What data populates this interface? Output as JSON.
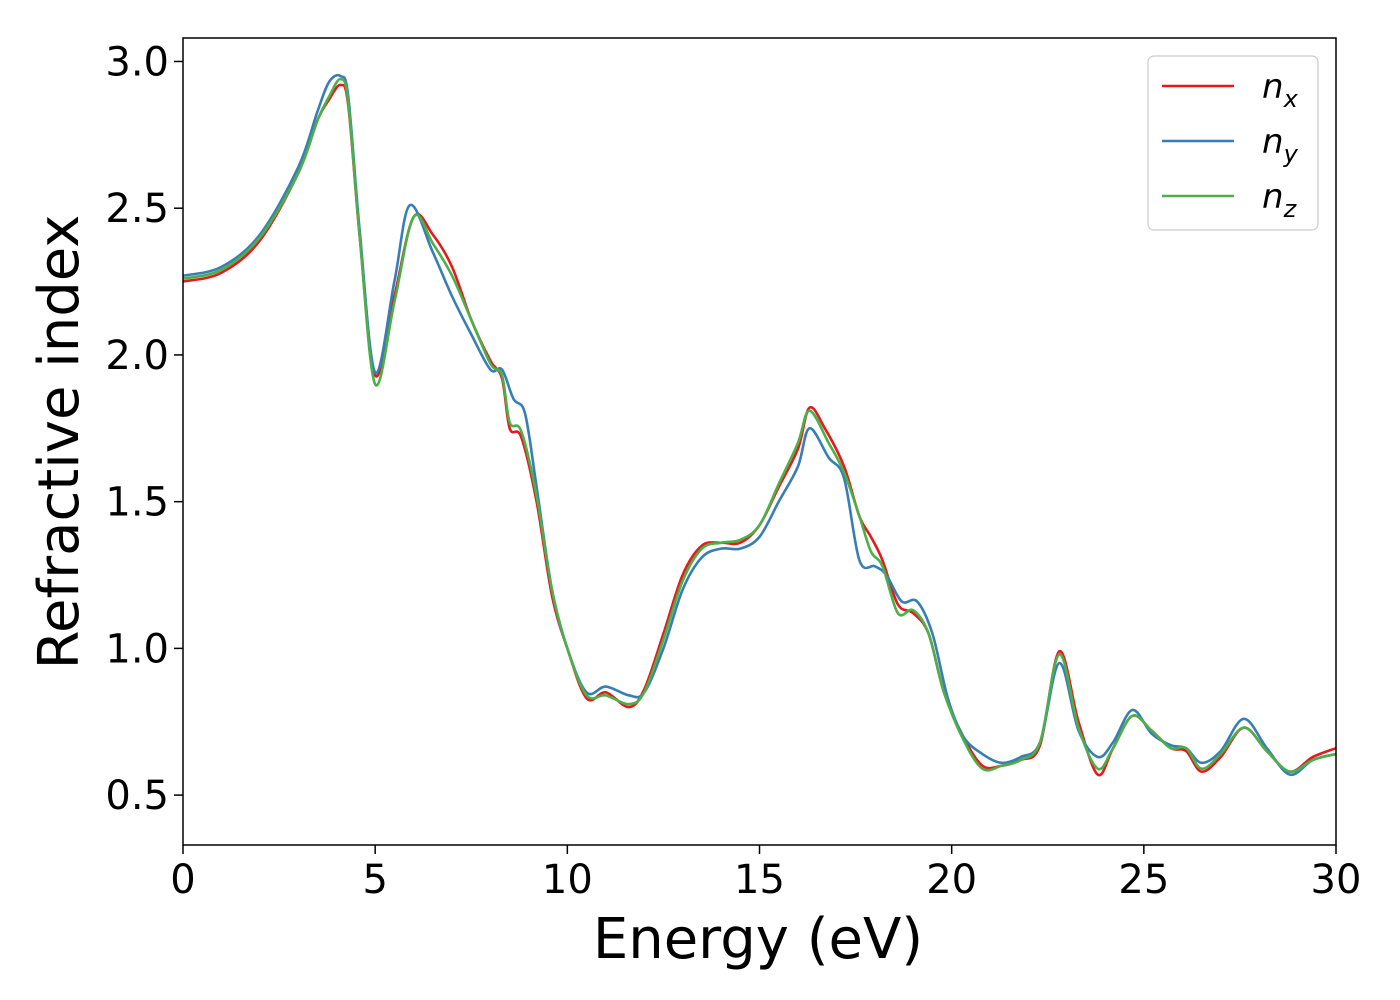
{
  "chart_data": {
    "type": "line",
    "title": "",
    "xlabel": "Energy (eV)",
    "ylabel": "Refractive index",
    "xlim": [
      0,
      30
    ],
    "ylim": [
      0.33,
      3.08
    ],
    "xticks": [
      0,
      5,
      10,
      15,
      20,
      25,
      30
    ],
    "yticks": [
      0.5,
      1.0,
      1.5,
      2.0,
      2.5,
      3.0
    ],
    "xtick_labels": [
      "0",
      "5",
      "10",
      "15",
      "20",
      "25",
      "30"
    ],
    "ytick_labels": [
      "0.5",
      "1.0",
      "1.5",
      "2.0",
      "2.5",
      "3.0"
    ],
    "grid": false,
    "legend_position": "top-right",
    "series": [
      {
        "name": "n",
        "subscript": "x",
        "color": "#e41a1c",
        "points": [
          [
            0,
            2.25
          ],
          [
            1,
            2.28
          ],
          [
            2,
            2.39
          ],
          [
            3,
            2.62
          ],
          [
            3.5,
            2.8
          ],
          [
            3.8,
            2.87
          ],
          [
            4.1,
            2.92
          ],
          [
            4.3,
            2.85
          ],
          [
            4.6,
            2.4
          ],
          [
            5,
            1.93
          ],
          [
            5.5,
            2.2
          ],
          [
            6,
            2.47
          ],
          [
            6.5,
            2.41
          ],
          [
            7,
            2.3
          ],
          [
            7.5,
            2.12
          ],
          [
            8,
            1.98
          ],
          [
            8.3,
            1.92
          ],
          [
            8.5,
            1.75
          ],
          [
            8.8,
            1.72
          ],
          [
            9.2,
            1.5
          ],
          [
            9.6,
            1.18
          ],
          [
            10,
            1.0
          ],
          [
            10.5,
            0.83
          ],
          [
            11,
            0.85
          ],
          [
            11.6,
            0.8
          ],
          [
            12,
            0.86
          ],
          [
            12.5,
            1.05
          ],
          [
            13,
            1.25
          ],
          [
            13.5,
            1.35
          ],
          [
            14,
            1.36
          ],
          [
            14.5,
            1.36
          ],
          [
            15,
            1.42
          ],
          [
            15.5,
            1.55
          ],
          [
            16,
            1.68
          ],
          [
            16.3,
            1.82
          ],
          [
            16.7,
            1.75
          ],
          [
            17.2,
            1.62
          ],
          [
            17.6,
            1.45
          ],
          [
            17.9,
            1.38
          ],
          [
            18.2,
            1.3
          ],
          [
            18.6,
            1.15
          ],
          [
            19,
            1.12
          ],
          [
            19.4,
            1.05
          ],
          [
            19.8,
            0.85
          ],
          [
            20.3,
            0.7
          ],
          [
            20.8,
            0.6
          ],
          [
            21.3,
            0.6
          ],
          [
            21.8,
            0.62
          ],
          [
            22.3,
            0.67
          ],
          [
            22.8,
            0.99
          ],
          [
            23.3,
            0.75
          ],
          [
            23.8,
            0.57
          ],
          [
            24.2,
            0.66
          ],
          [
            24.7,
            0.77
          ],
          [
            25.2,
            0.72
          ],
          [
            25.7,
            0.66
          ],
          [
            26.1,
            0.65
          ],
          [
            26.5,
            0.58
          ],
          [
            27,
            0.63
          ],
          [
            27.6,
            0.73
          ],
          [
            28.2,
            0.65
          ],
          [
            28.8,
            0.58
          ],
          [
            29.4,
            0.63
          ],
          [
            30,
            0.66
          ]
        ]
      },
      {
        "name": "n",
        "subscript": "y",
        "color": "#377eb8",
        "points": [
          [
            0,
            2.27
          ],
          [
            1,
            2.3
          ],
          [
            2,
            2.41
          ],
          [
            3,
            2.64
          ],
          [
            3.5,
            2.83
          ],
          [
            3.8,
            2.93
          ],
          [
            4.1,
            2.95
          ],
          [
            4.3,
            2.88
          ],
          [
            4.6,
            2.42
          ],
          [
            5,
            1.94
          ],
          [
            5.5,
            2.25
          ],
          [
            5.9,
            2.51
          ],
          [
            6.5,
            2.35
          ],
          [
            7,
            2.2
          ],
          [
            7.5,
            2.07
          ],
          [
            8,
            1.95
          ],
          [
            8.3,
            1.95
          ],
          [
            8.6,
            1.85
          ],
          [
            8.9,
            1.8
          ],
          [
            9.2,
            1.55
          ],
          [
            9.6,
            1.2
          ],
          [
            10,
            1.0
          ],
          [
            10.5,
            0.85
          ],
          [
            11,
            0.87
          ],
          [
            11.6,
            0.84
          ],
          [
            12,
            0.85
          ],
          [
            12.5,
            1.0
          ],
          [
            13,
            1.2
          ],
          [
            13.5,
            1.31
          ],
          [
            14,
            1.34
          ],
          [
            14.5,
            1.34
          ],
          [
            15,
            1.38
          ],
          [
            15.5,
            1.5
          ],
          [
            16,
            1.62
          ],
          [
            16.3,
            1.75
          ],
          [
            16.8,
            1.65
          ],
          [
            17.2,
            1.58
          ],
          [
            17.6,
            1.3
          ],
          [
            18,
            1.28
          ],
          [
            18.3,
            1.25
          ],
          [
            18.7,
            1.16
          ],
          [
            19.1,
            1.16
          ],
          [
            19.5,
            1.05
          ],
          [
            19.9,
            0.83
          ],
          [
            20.3,
            0.7
          ],
          [
            20.8,
            0.64
          ],
          [
            21.3,
            0.61
          ],
          [
            21.8,
            0.63
          ],
          [
            22.3,
            0.68
          ],
          [
            22.8,
            0.95
          ],
          [
            23.3,
            0.72
          ],
          [
            23.8,
            0.63
          ],
          [
            24.2,
            0.68
          ],
          [
            24.7,
            0.79
          ],
          [
            25.2,
            0.71
          ],
          [
            25.7,
            0.67
          ],
          [
            26.1,
            0.66
          ],
          [
            26.5,
            0.61
          ],
          [
            27,
            0.65
          ],
          [
            27.6,
            0.76
          ],
          [
            28.2,
            0.66
          ],
          [
            28.8,
            0.57
          ],
          [
            29.4,
            0.62
          ],
          [
            30,
            0.64
          ]
        ]
      },
      {
        "name": "n",
        "subscript": "z",
        "color": "#4daf4a",
        "points": [
          [
            0,
            2.26
          ],
          [
            1,
            2.29
          ],
          [
            2,
            2.4
          ],
          [
            3,
            2.62
          ],
          [
            3.5,
            2.8
          ],
          [
            3.8,
            2.88
          ],
          [
            4.1,
            2.94
          ],
          [
            4.3,
            2.86
          ],
          [
            4.6,
            2.4
          ],
          [
            5,
            1.9
          ],
          [
            5.5,
            2.18
          ],
          [
            6,
            2.47
          ],
          [
            6.5,
            2.38
          ],
          [
            7,
            2.27
          ],
          [
            7.5,
            2.12
          ],
          [
            8,
            1.97
          ],
          [
            8.3,
            1.93
          ],
          [
            8.5,
            1.77
          ],
          [
            8.8,
            1.74
          ],
          [
            9.2,
            1.52
          ],
          [
            9.6,
            1.2
          ],
          [
            10,
            1.0
          ],
          [
            10.5,
            0.84
          ],
          [
            11,
            0.84
          ],
          [
            11.6,
            0.81
          ],
          [
            12,
            0.85
          ],
          [
            12.5,
            1.03
          ],
          [
            13,
            1.23
          ],
          [
            13.5,
            1.34
          ],
          [
            14,
            1.36
          ],
          [
            14.5,
            1.37
          ],
          [
            15,
            1.42
          ],
          [
            15.5,
            1.56
          ],
          [
            16,
            1.7
          ],
          [
            16.3,
            1.81
          ],
          [
            16.8,
            1.7
          ],
          [
            17.2,
            1.6
          ],
          [
            17.6,
            1.45
          ],
          [
            17.9,
            1.33
          ],
          [
            18.2,
            1.28
          ],
          [
            18.6,
            1.12
          ],
          [
            19,
            1.13
          ],
          [
            19.4,
            1.05
          ],
          [
            19.8,
            0.85
          ],
          [
            20.3,
            0.69
          ],
          [
            20.8,
            0.59
          ],
          [
            21.3,
            0.6
          ],
          [
            21.8,
            0.62
          ],
          [
            22.3,
            0.68
          ],
          [
            22.8,
            0.98
          ],
          [
            23.3,
            0.73
          ],
          [
            23.8,
            0.59
          ],
          [
            24.2,
            0.66
          ],
          [
            24.7,
            0.77
          ],
          [
            25.2,
            0.72
          ],
          [
            25.7,
            0.66
          ],
          [
            26.1,
            0.66
          ],
          [
            26.5,
            0.59
          ],
          [
            27,
            0.64
          ],
          [
            27.6,
            0.73
          ],
          [
            28.2,
            0.65
          ],
          [
            28.8,
            0.58
          ],
          [
            29.4,
            0.62
          ],
          [
            30,
            0.64
          ]
        ]
      }
    ]
  }
}
